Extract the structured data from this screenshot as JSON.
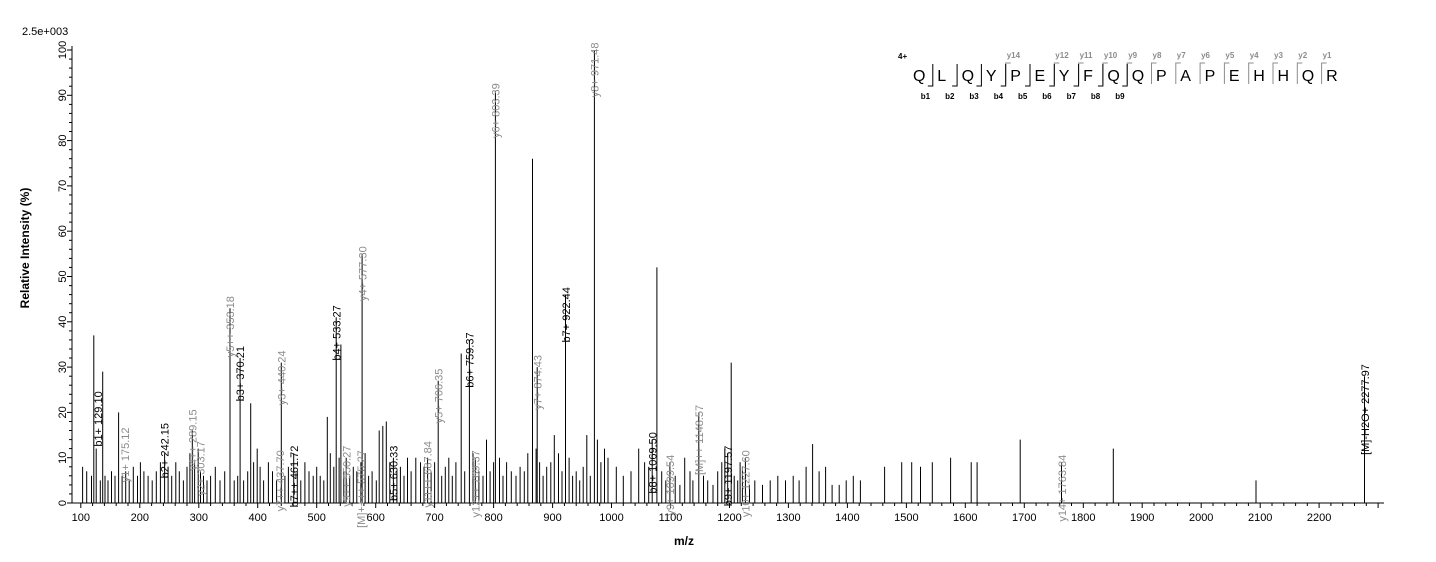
{
  "chart_data": {
    "type": "bar",
    "scale_label": "2.5e+003",
    "xlabel": "m/z",
    "ylabel": "Relative   Intensity (%)",
    "xlim": [
      85,
      2310
    ],
    "ylim": [
      0,
      100
    ],
    "x_ticks": [
      100,
      200,
      300,
      400,
      500,
      600,
      700,
      800,
      900,
      1000,
      1100,
      1200,
      1300,
      1400,
      1500,
      1600,
      1700,
      1800,
      1900,
      2000,
      2100,
      2200
    ],
    "y_ticks": [
      0,
      10,
      20,
      30,
      40,
      50,
      60,
      70,
      80,
      90,
      100
    ],
    "grid": false,
    "colors": {
      "axis": "#000000",
      "b_ion": "#000000",
      "y_ion": "#8c8c8c",
      "peak": "#000000"
    },
    "peaks": [
      [
        103,
        8
      ],
      [
        110,
        7
      ],
      [
        118,
        6
      ],
      [
        122,
        37
      ],
      [
        126,
        12
      ],
      [
        133,
        5
      ],
      [
        137,
        29
      ],
      [
        141,
        6
      ],
      [
        146,
        5
      ],
      [
        152,
        7
      ],
      [
        158,
        6
      ],
      [
        164,
        20
      ],
      [
        170,
        6
      ],
      [
        176,
        7
      ],
      [
        182,
        5
      ],
      [
        189,
        8
      ],
      [
        196,
        6
      ],
      [
        201,
        9
      ],
      [
        207,
        7
      ],
      [
        214,
        6
      ],
      [
        221,
        5
      ],
      [
        228,
        7
      ],
      [
        235,
        9
      ],
      [
        242,
        11
      ],
      [
        248,
        8
      ],
      [
        254,
        6
      ],
      [
        261,
        9
      ],
      [
        267,
        7
      ],
      [
        274,
        5
      ],
      [
        280,
        8
      ],
      [
        285,
        11
      ],
      [
        289,
        16
      ],
      [
        293,
        9
      ],
      [
        299,
        12
      ],
      [
        303,
        7
      ],
      [
        308,
        6
      ],
      [
        314,
        5
      ],
      [
        320,
        6
      ],
      [
        328,
        8
      ],
      [
        336,
        5
      ],
      [
        344,
        7
      ],
      [
        353,
        43
      ],
      [
        360,
        5
      ],
      [
        366,
        6
      ],
      [
        370,
        32
      ],
      [
        376,
        5
      ],
      [
        383,
        7
      ],
      [
        388,
        22
      ],
      [
        393,
        9
      ],
      [
        399,
        12
      ],
      [
        404,
        8
      ],
      [
        410,
        5
      ],
      [
        418,
        9
      ],
      [
        425,
        7
      ],
      [
        432,
        5
      ],
      [
        440,
        31
      ],
      [
        446,
        6
      ],
      [
        452,
        8
      ],
      [
        461,
        11
      ],
      [
        467,
        7
      ],
      [
        473,
        5
      ],
      [
        480,
        9
      ],
      [
        487,
        7
      ],
      [
        494,
        6
      ],
      [
        500,
        8
      ],
      [
        506,
        6
      ],
      [
        512,
        5
      ],
      [
        518,
        19
      ],
      [
        523,
        11
      ],
      [
        529,
        8
      ],
      [
        533,
        41
      ],
      [
        538,
        10
      ],
      [
        541,
        35
      ],
      [
        546,
        7
      ],
      [
        550,
        10
      ],
      [
        556,
        6
      ],
      [
        562,
        8
      ],
      [
        568,
        7
      ],
      [
        575,
        9
      ],
      [
        577,
        55
      ],
      [
        582,
        11
      ],
      [
        588,
        6
      ],
      [
        594,
        7
      ],
      [
        601,
        5
      ],
      [
        606,
        16
      ],
      [
        612,
        17
      ],
      [
        618,
        18
      ],
      [
        624,
        9
      ],
      [
        630,
        10
      ],
      [
        636,
        7
      ],
      [
        642,
        8
      ],
      [
        648,
        6
      ],
      [
        654,
        10
      ],
      [
        660,
        7
      ],
      [
        668,
        10
      ],
      [
        676,
        9
      ],
      [
        682,
        8
      ],
      [
        688,
        10
      ],
      [
        694,
        7
      ],
      [
        700,
        9
      ],
      [
        706,
        27
      ],
      [
        712,
        6
      ],
      [
        718,
        8
      ],
      [
        724,
        10
      ],
      [
        730,
        6
      ],
      [
        736,
        9
      ],
      [
        745,
        33
      ],
      [
        751,
        7
      ],
      [
        759,
        36
      ],
      [
        765,
        11
      ],
      [
        769,
        10
      ],
      [
        775,
        7
      ],
      [
        782,
        6
      ],
      [
        788,
        14
      ],
      [
        794,
        7
      ],
      [
        800,
        9
      ],
      [
        803,
        91
      ],
      [
        810,
        10
      ],
      [
        816,
        6
      ],
      [
        822,
        9
      ],
      [
        830,
        7
      ],
      [
        838,
        6
      ],
      [
        845,
        8
      ],
      [
        852,
        7
      ],
      [
        858,
        11
      ],
      [
        866,
        76
      ],
      [
        872,
        12
      ],
      [
        874,
        30
      ],
      [
        878,
        9
      ],
      [
        884,
        6
      ],
      [
        890,
        8
      ],
      [
        897,
        9
      ],
      [
        903,
        15
      ],
      [
        910,
        11
      ],
      [
        916,
        7
      ],
      [
        922,
        46
      ],
      [
        928,
        10
      ],
      [
        934,
        6
      ],
      [
        940,
        7
      ],
      [
        946,
        5
      ],
      [
        952,
        8
      ],
      [
        958,
        15
      ],
      [
        964,
        6
      ],
      [
        971,
        100
      ],
      [
        976,
        14
      ],
      [
        982,
        9
      ],
      [
        988,
        12
      ],
      [
        994,
        10
      ],
      [
        1008,
        8
      ],
      [
        1020,
        6
      ],
      [
        1033,
        7
      ],
      [
        1046,
        12
      ],
      [
        1056,
        9
      ],
      [
        1063,
        8
      ],
      [
        1069,
        14
      ],
      [
        1077,
        52
      ],
      [
        1085,
        7
      ],
      [
        1092,
        5
      ],
      [
        1099,
        9
      ],
      [
        1108,
        6
      ],
      [
        1116,
        4
      ],
      [
        1124,
        10
      ],
      [
        1133,
        7
      ],
      [
        1138,
        5
      ],
      [
        1148,
        20
      ],
      [
        1156,
        6
      ],
      [
        1163,
        5
      ],
      [
        1172,
        4
      ],
      [
        1180,
        7
      ],
      [
        1187,
        9
      ],
      [
        1192,
        12
      ],
      [
        1197,
        11
      ],
      [
        1203,
        31
      ],
      [
        1208,
        6
      ],
      [
        1214,
        5
      ],
      [
        1218,
        9
      ],
      [
        1222,
        8
      ],
      [
        1227,
        10
      ],
      [
        1234,
        4
      ],
      [
        1243,
        5
      ],
      [
        1256,
        4
      ],
      [
        1269,
        5
      ],
      [
        1282,
        6
      ],
      [
        1295,
        5
      ],
      [
        1308,
        6
      ],
      [
        1318,
        5
      ],
      [
        1330,
        8
      ],
      [
        1341,
        13
      ],
      [
        1352,
        7
      ],
      [
        1363,
        8
      ],
      [
        1374,
        4
      ],
      [
        1386,
        4
      ],
      [
        1398,
        5
      ],
      [
        1410,
        6
      ],
      [
        1422,
        5
      ],
      [
        1463,
        8
      ],
      [
        1492,
        9
      ],
      [
        1509,
        9
      ],
      [
        1524,
        8
      ],
      [
        1544,
        9
      ],
      [
        1575,
        10
      ],
      [
        1610,
        9
      ],
      [
        1620,
        9
      ],
      [
        1693,
        14
      ],
      [
        1763,
        9
      ],
      [
        1851,
        12
      ],
      [
        2093,
        5
      ],
      [
        2277,
        28
      ]
    ],
    "annotations": [
      {
        "label": "b1+ 129.10",
        "x": 129.1,
        "y": 24,
        "ion": "b"
      },
      {
        "label": "y1+ 175.12",
        "x": 175.12,
        "y": 16,
        "ion": "y"
      },
      {
        "label": "b2+ 242.15",
        "x": 242.15,
        "y": 17,
        "ion": "b"
      },
      {
        "label": "y4++ 289.15",
        "x": 289.15,
        "y": 20,
        "ion": "y"
      },
      {
        "label": "y2+ 303.17",
        "x": 303.17,
        "y": 13,
        "ion": "y"
      },
      {
        "label": "y5++ 353.18",
        "x": 353.18,
        "y": 45,
        "ion": "y"
      },
      {
        "label": "b3+ 370.21",
        "x": 370.21,
        "y": 34,
        "ion": "b"
      },
      {
        "label": "y3+ 440.24",
        "x": 440.24,
        "y": 33,
        "ion": "y"
      },
      {
        "label": "y7++ 437.70",
        "x": 437.7,
        "y": 11,
        "ion": "y"
      },
      {
        "label": "b7++ 461.72",
        "x": 461.72,
        "y": 12,
        "ion": "b"
      },
      {
        "label": "b4+ 533.27",
        "x": 533.27,
        "y": 43,
        "ion": "b"
      },
      {
        "label": "y9++ 550.27",
        "x": 550.27,
        "y": 12,
        "ion": "y"
      },
      {
        "label": "[M]++++ 575.27",
        "x": 575.27,
        "y": 11,
        "ion": "y"
      },
      {
        "label": "y4+ 577.30",
        "x": 577.3,
        "y": 56,
        "ion": "y"
      },
      {
        "label": "b5+ 630.33",
        "x": 630.33,
        "y": 12,
        "ion": "b"
      },
      {
        "label": "y11++ 687.84",
        "x": 687.84,
        "y": 13,
        "ion": "y"
      },
      {
        "label": "y5+ 706.35",
        "x": 706.35,
        "y": 29,
        "ion": "y"
      },
      {
        "label": "b6+ 759.37",
        "x": 759.37,
        "y": 37,
        "ion": "b"
      },
      {
        "label": "y12++ 769.37",
        "x": 769.37,
        "y": 11,
        "ion": "y"
      },
      {
        "label": "y6+ 803.39",
        "x": 803.39,
        "y": 92,
        "ion": "y"
      },
      {
        "label": "y7+ 874.43",
        "x": 874.43,
        "y": 32,
        "ion": "y"
      },
      {
        "label": "b7+ 922.44",
        "x": 922.44,
        "y": 47,
        "ion": "b"
      },
      {
        "label": "y8+ 971.48",
        "x": 971.48,
        "y": 101,
        "ion": "y"
      },
      {
        "label": "b8+ 1069.50",
        "x": 1069.5,
        "y": 15,
        "ion": "b"
      },
      {
        "label": "y9+ 1099.54",
        "x": 1099.54,
        "y": 10,
        "ion": "y"
      },
      {
        "label": "[M]++ 1148.57",
        "x": 1148.57,
        "y": 21,
        "ion": "y"
      },
      {
        "label": "b9+ 1197.57",
        "x": 1197.57,
        "y": 12,
        "ion": "b"
      },
      {
        "label": "y10+ 1227.60",
        "x": 1227.6,
        "y": 11,
        "ion": "y"
      },
      {
        "label": "y14+ 1763.84",
        "x": 1763.84,
        "y": 10,
        "ion": "y"
      },
      {
        "label": "[M]-H2O+ 2277.97",
        "x": 2277.97,
        "y": 30,
        "ion": "b"
      }
    ],
    "sequence": {
      "charge": "4+",
      "residues": [
        "Q",
        "L",
        "Q",
        "Y",
        "P",
        "E",
        "Y",
        "F",
        "Q",
        "Q",
        "P",
        "A",
        "P",
        "E",
        "H",
        "H",
        "Q",
        "R"
      ],
      "y_ions": [
        {
          "label": "y14",
          "after": 4
        },
        {
          "label": "y12",
          "after": 6
        },
        {
          "label": "y11",
          "after": 7
        },
        {
          "label": "y10",
          "after": 8
        },
        {
          "label": "y9",
          "after": 9
        },
        {
          "label": "y8",
          "after": 10
        },
        {
          "label": "y7",
          "after": 11
        },
        {
          "label": "y6",
          "after": 12
        },
        {
          "label": "y5",
          "after": 13
        },
        {
          "label": "y4",
          "after": 14
        },
        {
          "label": "y3",
          "after": 15
        },
        {
          "label": "y2",
          "after": 16
        },
        {
          "label": "y1",
          "after": 17
        }
      ],
      "b_ions": [
        {
          "label": "b1",
          "after": 1
        },
        {
          "label": "b2",
          "after": 2
        },
        {
          "label": "b3",
          "after": 3
        },
        {
          "label": "b4",
          "after": 4
        },
        {
          "label": "b5",
          "after": 5
        },
        {
          "label": "b6",
          "after": 6
        },
        {
          "label": "b7",
          "after": 7
        },
        {
          "label": "b8",
          "after": 8
        },
        {
          "label": "b9",
          "after": 9
        }
      ]
    }
  }
}
